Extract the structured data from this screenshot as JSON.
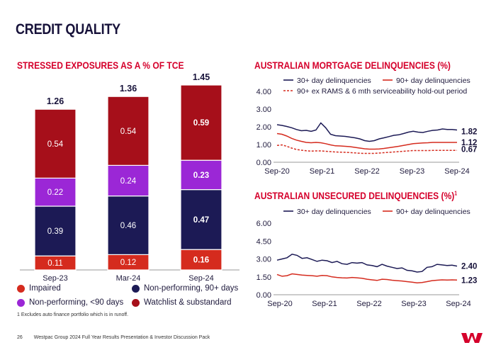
{
  "page_title": "CREDIT QUALITY",
  "colors": {
    "red": "#d52b1e",
    "navy": "#1c1a55",
    "purple": "#9b27d6",
    "maroon": "#a60f1a",
    "brand": "#d5002b"
  },
  "bar_section_title": "STRESSED EXPOSURES AS A % OF TCE",
  "mortgage_section_title": "AUSTRALIAN MORTGAGE DELINQUENCIES (%)",
  "unsecured_section_title": "AUSTRALIAN UNSECURED DELINQUENCIES (%)",
  "unsecured_title_sup": "1",
  "legend": {
    "impaired": "Impaired",
    "np90": "Non-performing, 90+ days",
    "npl90": "Non-performing, <90 days",
    "watch": "Watchlist & substandard"
  },
  "footnote": "1 Excludes auto finance portfolio which is in runoff.",
  "footer": {
    "page": "26",
    "text": "Westpac Group 2024 Full Year Results Presentation & Investor Discussion Pack"
  },
  "chart_data": [
    {
      "type": "bar",
      "stacked": true,
      "title": "STRESSED EXPOSURES AS A % OF TCE",
      "categories": [
        "Sep-23",
        "Mar-24",
        "Sep-24"
      ],
      "totals": [
        "1.26",
        "1.36",
        "1.45"
      ],
      "series": [
        {
          "name": "Impaired",
          "color": "#d52b1e",
          "values": [
            0.11,
            0.12,
            0.16
          ],
          "labels": [
            "0.11",
            "0.12",
            "0.16"
          ]
        },
        {
          "name": "Non-performing, 90+ days",
          "color": "#1c1a55",
          "values": [
            0.39,
            0.46,
            0.47
          ],
          "labels": [
            "0.39",
            "0.46",
            "0.47"
          ]
        },
        {
          "name": "Non-performing, <90 days",
          "color": "#9b27d6",
          "values": [
            0.22,
            0.24,
            0.23
          ],
          "labels": [
            "0.22",
            "0.24",
            "0.23"
          ]
        },
        {
          "name": "Watchlist & substandard",
          "color": "#a60f1a",
          "values": [
            0.54,
            0.54,
            0.59
          ],
          "labels": [
            "0.54",
            "0.54",
            "0.59"
          ]
        }
      ],
      "highlight_last": true
    },
    {
      "type": "line",
      "title": "AUSTRALIAN MORTGAGE DELINQUENCIES (%)",
      "ylim": [
        0,
        4
      ],
      "yticks": [
        "0.00",
        "1.00",
        "2.00",
        "3.00",
        "4.00"
      ],
      "xtick_labels": [
        "Sep-20",
        "Sep-21",
        "Sep-22",
        "Sep-23",
        "Sep-24"
      ],
      "legend": [
        "30+ day delinquencies",
        "90+ day delinquencies",
        "90+ ex RAMS & 6 mth serviceability hold-out period"
      ],
      "end_labels": [
        "1.82",
        "1.12",
        "0.67"
      ],
      "series": [
        {
          "name": "30+ day delinquencies",
          "color": "#1c1a55",
          "dashed": false,
          "values": [
            2.12,
            2.08,
            2.02,
            1.95,
            1.85,
            1.78,
            1.8,
            1.75,
            1.82,
            2.22,
            1.95,
            1.58,
            1.5,
            1.48,
            1.46,
            1.42,
            1.38,
            1.32,
            1.22,
            1.18,
            1.22,
            1.32,
            1.38,
            1.45,
            1.52,
            1.55,
            1.62,
            1.7,
            1.75,
            1.7,
            1.68,
            1.75,
            1.8,
            1.82,
            1.88,
            1.85,
            1.85,
            1.82
          ]
        },
        {
          "name": "90+ day delinquencies",
          "color": "#d52b1e",
          "dashed": false,
          "values": [
            1.62,
            1.58,
            1.48,
            1.35,
            1.25,
            1.18,
            1.12,
            1.1,
            1.12,
            1.1,
            1.05,
            0.98,
            0.93,
            0.92,
            0.9,
            0.88,
            0.84,
            0.8,
            0.76,
            0.74,
            0.74,
            0.75,
            0.78,
            0.82,
            0.86,
            0.9,
            0.95,
            1.0,
            1.05,
            1.07,
            1.09,
            1.1,
            1.12,
            1.12,
            1.12,
            1.12,
            1.12,
            1.12
          ]
        },
        {
          "name": "90+ ex RAMS & 6 mth serviceability hold-out period",
          "color": "#d52b1e",
          "dashed": true,
          "values": [
            0.95,
            0.98,
            0.9,
            0.8,
            0.72,
            0.68,
            0.65,
            0.63,
            0.64,
            0.64,
            0.62,
            0.6,
            0.58,
            0.57,
            0.56,
            0.55,
            0.53,
            0.51,
            0.5,
            0.5,
            0.5,
            0.52,
            0.54,
            0.56,
            0.58,
            0.6,
            0.62,
            0.64,
            0.66,
            0.66,
            0.66,
            0.66,
            0.67,
            0.67,
            0.67,
            0.67,
            0.67,
            0.67
          ]
        }
      ]
    },
    {
      "type": "line",
      "title": "AUSTRALIAN UNSECURED DELINQUENCIES (%)",
      "ylim": [
        0,
        6
      ],
      "yticks": [
        "0.00",
        "1.50",
        "3.00",
        "4.50",
        "6.00"
      ],
      "xtick_labels": [
        "Sep-20",
        "Sep-21",
        "Sep-22",
        "Sep-23",
        "Sep-24"
      ],
      "legend": [
        "30+ day delinquencies",
        "90+ day delinquencies"
      ],
      "end_labels": [
        "2.40",
        "1.23"
      ],
      "series": [
        {
          "name": "30+ day delinquencies",
          "color": "#1c1a55",
          "dashed": false,
          "values": [
            2.9,
            3.0,
            3.1,
            3.4,
            3.3,
            3.05,
            3.1,
            2.95,
            2.8,
            2.9,
            2.85,
            2.7,
            2.8,
            2.6,
            2.55,
            2.7,
            2.65,
            2.7,
            2.5,
            2.45,
            2.35,
            2.55,
            2.4,
            2.3,
            2.2,
            2.25,
            2.05,
            2.0,
            1.9,
            1.95,
            2.3,
            2.35,
            2.55,
            2.5,
            2.45,
            2.48,
            2.4
          ]
        },
        {
          "name": "90+ day delinquencies",
          "color": "#d52b1e",
          "dashed": false,
          "values": [
            1.7,
            1.55,
            1.6,
            1.75,
            1.7,
            1.65,
            1.62,
            1.6,
            1.55,
            1.62,
            1.6,
            1.5,
            1.45,
            1.42,
            1.4,
            1.45,
            1.42,
            1.38,
            1.3,
            1.25,
            1.2,
            1.3,
            1.28,
            1.22,
            1.18,
            1.15,
            1.1,
            1.05,
            1.0,
            1.02,
            1.1,
            1.18,
            1.22,
            1.25,
            1.23,
            1.25,
            1.23
          ]
        }
      ]
    }
  ]
}
